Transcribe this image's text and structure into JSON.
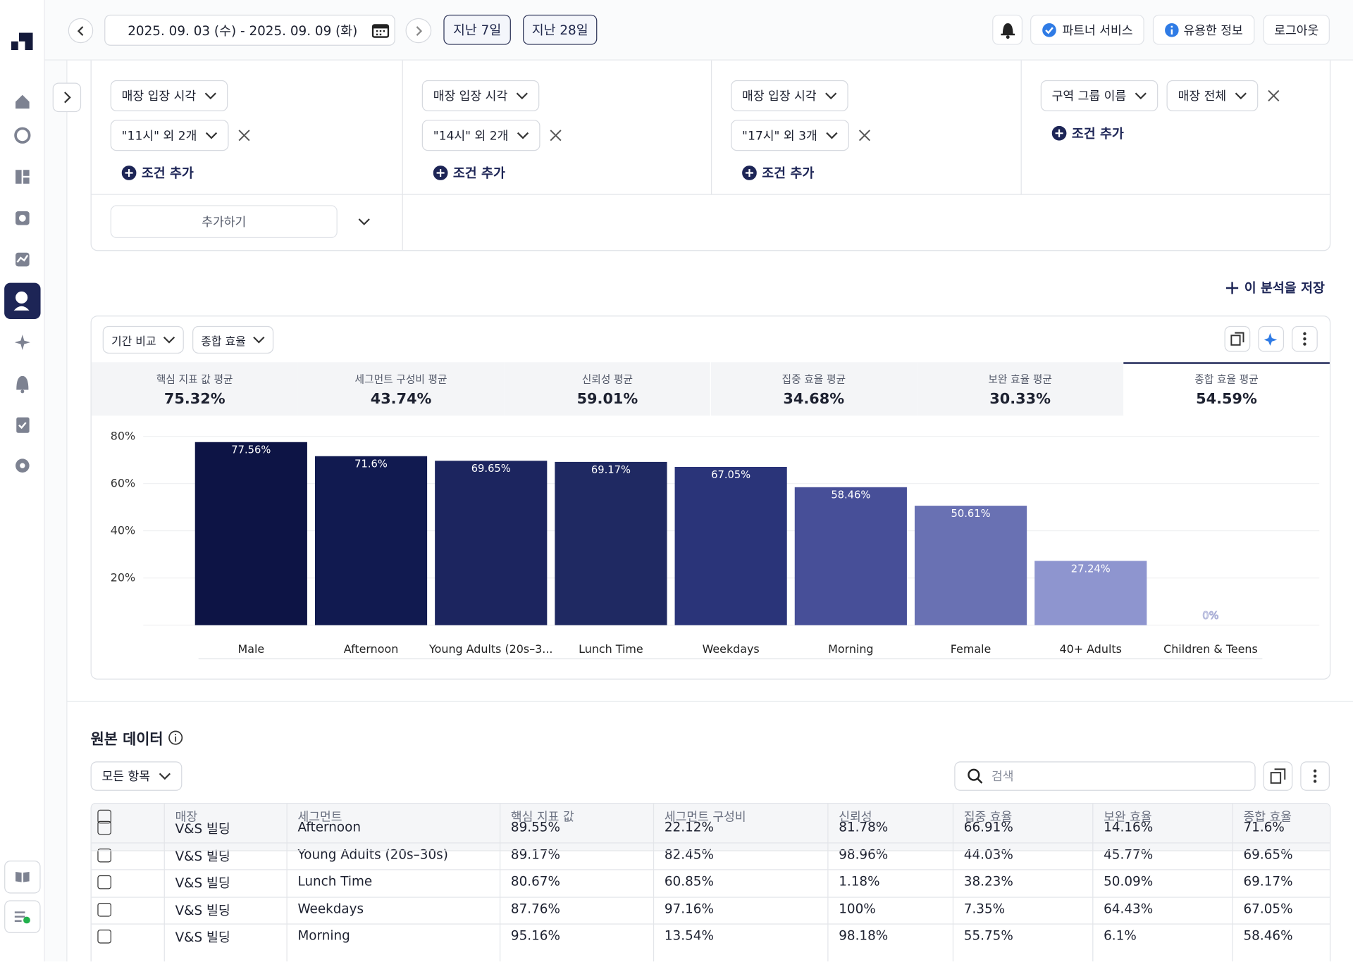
{
  "header": {
    "date_range": "2025. 09. 03 (수) - 2025. 09. 09 (화)",
    "quick_ranges": [
      "지난 7일",
      "지난 28일"
    ],
    "buttons": [
      "파트너 서비스",
      "유용한 정보",
      "로그아웃"
    ]
  },
  "filters": {
    "columns": [
      {
        "conditions": [
          "매장 입장 시각",
          "\"11시\" 외 2개"
        ],
        "add": "조건 추가"
      },
      {
        "conditions": [
          "매장 입장 시각",
          "\"14시\" 외 2개"
        ],
        "add": "조건 추가"
      },
      {
        "conditions": [
          "매장 입장 시각",
          "\"17시\" 외 3개"
        ],
        "add": "조건 추가"
      },
      {
        "conditions": [
          "구역 그룹 이름",
          "매장 전체"
        ],
        "add": "조건 추가"
      }
    ],
    "add_button": "추가하기"
  },
  "save_analysis": "이 분석을 저장",
  "chart_controls": [
    "기간 비교",
    "종합 효율"
  ],
  "metrics": [
    {
      "label": "핵심 지표 값 평균",
      "value": "75.32%"
    },
    {
      "label": "세그먼트 구성비 평균",
      "value": "43.74%"
    },
    {
      "label": "신뢰성 평균",
      "value": "59.01%"
    },
    {
      "label": "집중 효율 평균",
      "value": "34.68%"
    },
    {
      "label": "보완 효율 평균",
      "value": "30.33%"
    },
    {
      "label": "종합 효율 평균",
      "value": "54.59%"
    }
  ],
  "chart_data": {
    "type": "bar",
    "categories": [
      "Male",
      "Afternoon",
      "Young Adults (20s–3...",
      "Lunch Time",
      "Weekdays",
      "Morning",
      "Female",
      "40+ Adults",
      "Children & Teens"
    ],
    "values": [
      77.56,
      71.6,
      69.65,
      69.17,
      67.05,
      58.46,
      50.61,
      27.24,
      0
    ],
    "value_labels": [
      "77.56%",
      "71.6%",
      "69.65%",
      "69.17%",
      "67.05%",
      "58.46%",
      "50.61%",
      "27.24%",
      "0%"
    ],
    "colors": [
      "#0d1445",
      "#111a50",
      "#1c255f",
      "#1f2962",
      "#2a3479",
      "#474f98",
      "#6971b3",
      "#8e95cf",
      "#b9bde3"
    ],
    "ylim": [
      0,
      80
    ],
    "yticks": [
      {
        "value": 20,
        "label": "20%"
      },
      {
        "value": 40,
        "label": "40%"
      },
      {
        "value": 60,
        "label": "60%"
      },
      {
        "value": 80,
        "label": "80%"
      }
    ],
    "grid": true
  },
  "raw_data": {
    "title": "원본 데이터",
    "filter": "모든 항목",
    "search_placeholder": "검색",
    "table": {
      "columns": [
        "매장",
        "세그먼트",
        "핵심 지표 값",
        "세그먼트 구성비",
        "신뢰성",
        "집중 효율",
        "보완 효율",
        "종합 효율"
      ],
      "rows": [
        [
          "V&S 빌딩",
          "Afternoon",
          "89.55%",
          "22.12%",
          "81.78%",
          "66.91%",
          "14.16%",
          "71.6%"
        ],
        [
          "V&S 빌딩",
          "Young Adults (20s–30s)",
          "89.17%",
          "82.45%",
          "98.96%",
          "44.03%",
          "45.77%",
          "69.65%"
        ],
        [
          "V&S 빌딩",
          "Lunch Time",
          "80.67%",
          "60.85%",
          "1.18%",
          "38.23%",
          "50.09%",
          "69.17%"
        ],
        [
          "V&S 빌딩",
          "Weekdays",
          "87.76%",
          "97.16%",
          "100%",
          "7.35%",
          "64.43%",
          "67.05%"
        ],
        [
          "V&S 빌딩",
          "Morning",
          "95.16%",
          "13.54%",
          "98.18%",
          "55.75%",
          "6.1%",
          "58.46%"
        ]
      ]
    }
  }
}
